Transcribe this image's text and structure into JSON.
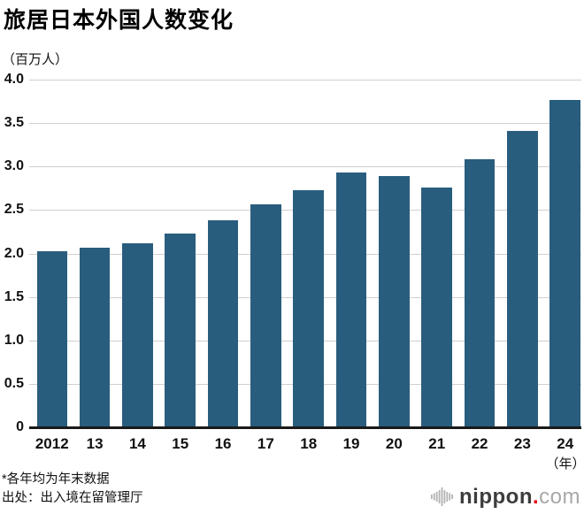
{
  "title": "旅居日本外国人数变化",
  "unit_label": "（百万人）",
  "chart_data": {
    "type": "bar",
    "title": "旅居日本外国人数变化",
    "categories": [
      "2012",
      "13",
      "14",
      "15",
      "16",
      "17",
      "18",
      "19",
      "20",
      "21",
      "22",
      "23",
      "24"
    ],
    "values": [
      2.03,
      2.07,
      2.12,
      2.23,
      2.38,
      2.56,
      2.73,
      2.93,
      2.89,
      2.76,
      3.08,
      3.41,
      3.77
    ],
    "xlabel": "（年）",
    "ylabel": "（百万人）",
    "ylim": [
      0,
      4.0
    ],
    "yticks": [
      "4.0",
      "3.5",
      "3.0",
      "2.5",
      "2.0",
      "1.5",
      "1.0",
      "0.5",
      "0"
    ],
    "grid": true,
    "legend": "none",
    "bar_color": "#295d7e"
  },
  "footnotes": [
    "*各年均为年末数据",
    "出处：出入境在留管理厅"
  ],
  "logo": {
    "name": "nippon",
    "dot": ".",
    "tld": "com"
  },
  "colors": {
    "bar": "#295d7e",
    "grid": "#cfcfcf",
    "axis": "#1a1a1a",
    "text": "#111111",
    "logo_dark": "#3d3d3d",
    "logo_red": "#e50012",
    "logo_light": "#a8a8a8",
    "logo_mark": "#b3b3b3"
  }
}
